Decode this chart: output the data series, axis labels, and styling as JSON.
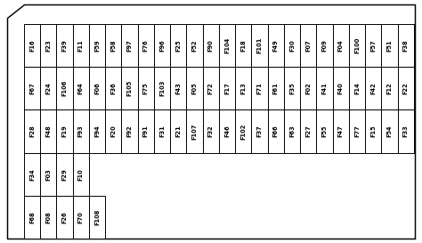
{
  "background_color": "#ffffff",
  "border_color": "#000000",
  "cell_color": "#ffffff",
  "text_color": "#000000",
  "rows": [
    [
      "F16",
      "F23",
      "F39",
      "F11",
      "F59",
      "F58",
      "F97",
      "F76",
      "F96",
      "F25",
      "F52",
      "F90",
      "F104",
      "F18",
      "F101",
      "F49",
      "F30",
      "F07",
      "F09",
      "F04",
      "F100",
      "F57",
      "F51",
      "F38"
    ],
    [
      "F67",
      "F24",
      "F106",
      "F64",
      "F06",
      "F36",
      "F105",
      "F75",
      "F103",
      "F43",
      "F05",
      "F72",
      "F17",
      "F13",
      "F71",
      "F61",
      "F35",
      "F02",
      "F41",
      "F40",
      "F14",
      "F42",
      "F12",
      "F22"
    ],
    [
      "F28",
      "F48",
      "F19",
      "F93",
      "F94",
      "F20",
      "F92",
      "F91",
      "F31",
      "F21",
      "F107",
      "F32",
      "F46",
      "F102",
      "F37",
      "F66",
      "F63",
      "F27",
      "F55",
      "F47",
      "F77",
      "F15",
      "F54",
      "F33"
    ],
    [
      "F34",
      "F03",
      "F29",
      "F10",
      null,
      null,
      null,
      null,
      null,
      null,
      null,
      null,
      null,
      null,
      null,
      null,
      null,
      null,
      null,
      null,
      null,
      null,
      null,
      null
    ],
    [
      "F68",
      "F08",
      "F26",
      "F70",
      "F108",
      null,
      null,
      null,
      null,
      null,
      null,
      null,
      null,
      null,
      null,
      null,
      null,
      null,
      null,
      null,
      null,
      null,
      null,
      null
    ]
  ],
  "num_cols": 24,
  "num_rows": 5,
  "fig_width": 4.74,
  "fig_height": 2.73,
  "font_size": 4.8,
  "line_width": 0.7
}
